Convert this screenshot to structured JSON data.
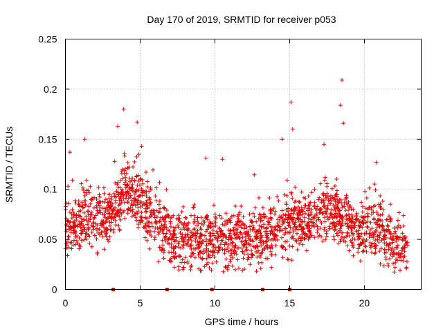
{
  "chart_data": {
    "type": "scatter",
    "title": "Day 170 of 2019, SRMTID for receiver p053",
    "xlabel": "GPS time / hours",
    "ylabel": "SRMTID / TECUs",
    "xlim": [
      0,
      23.8
    ],
    "ylim": [
      0,
      0.25
    ],
    "xticks": [
      0,
      5,
      10,
      15,
      20
    ],
    "xtick_labels": [
      "0",
      "5",
      "10",
      "15",
      "20"
    ],
    "yticks": [
      0,
      0.05,
      0.1,
      0.15,
      0.2,
      0.25
    ],
    "ytick_labels": [
      "0",
      "0.05",
      "0.1",
      "0.15",
      "0.2",
      "0.25"
    ],
    "grid": true,
    "marker": "+",
    "color": "#e00000",
    "x_range": [
      0.0,
      22.9
    ],
    "trend": [
      {
        "x": 0.0,
        "y": 0.062
      },
      {
        "x": 0.5,
        "y": 0.06
      },
      {
        "x": 1.0,
        "y": 0.066
      },
      {
        "x": 1.5,
        "y": 0.072
      },
      {
        "x": 2.0,
        "y": 0.068
      },
      {
        "x": 2.5,
        "y": 0.07
      },
      {
        "x": 3.0,
        "y": 0.073
      },
      {
        "x": 3.5,
        "y": 0.09
      },
      {
        "x": 4.0,
        "y": 0.1
      },
      {
        "x": 4.5,
        "y": 0.098
      },
      {
        "x": 5.0,
        "y": 0.088
      },
      {
        "x": 5.5,
        "y": 0.075
      },
      {
        "x": 6.0,
        "y": 0.068
      },
      {
        "x": 6.5,
        "y": 0.06
      },
      {
        "x": 7.0,
        "y": 0.052
      },
      {
        "x": 7.5,
        "y": 0.05
      },
      {
        "x": 8.0,
        "y": 0.05
      },
      {
        "x": 8.5,
        "y": 0.052
      },
      {
        "x": 9.0,
        "y": 0.049
      },
      {
        "x": 9.5,
        "y": 0.05
      },
      {
        "x": 10.0,
        "y": 0.052
      },
      {
        "x": 10.5,
        "y": 0.05
      },
      {
        "x": 11.0,
        "y": 0.046
      },
      {
        "x": 11.5,
        "y": 0.052
      },
      {
        "x": 12.0,
        "y": 0.05
      },
      {
        "x": 12.5,
        "y": 0.05
      },
      {
        "x": 13.0,
        "y": 0.052
      },
      {
        "x": 13.5,
        "y": 0.055
      },
      {
        "x": 14.0,
        "y": 0.058
      },
      {
        "x": 14.5,
        "y": 0.06
      },
      {
        "x": 15.0,
        "y": 0.064
      },
      {
        "x": 15.5,
        "y": 0.072
      },
      {
        "x": 16.0,
        "y": 0.068
      },
      {
        "x": 16.5,
        "y": 0.07
      },
      {
        "x": 17.0,
        "y": 0.074
      },
      {
        "x": 17.5,
        "y": 0.08
      },
      {
        "x": 18.0,
        "y": 0.076
      },
      {
        "x": 18.5,
        "y": 0.07
      },
      {
        "x": 19.0,
        "y": 0.064
      },
      {
        "x": 19.5,
        "y": 0.06
      },
      {
        "x": 20.0,
        "y": 0.056
      },
      {
        "x": 20.5,
        "y": 0.062
      },
      {
        "x": 21.0,
        "y": 0.064
      },
      {
        "x": 21.5,
        "y": 0.05
      },
      {
        "x": 22.0,
        "y": 0.044
      },
      {
        "x": 22.5,
        "y": 0.04
      },
      {
        "x": 22.9,
        "y": 0.036
      }
    ],
    "spread": 0.018,
    "approx_point_count": 2000,
    "notable_peaks": [
      {
        "x": 0.3,
        "y": 0.137
      },
      {
        "x": 1.3,
        "y": 0.15
      },
      {
        "x": 3.9,
        "y": 0.18
      },
      {
        "x": 3.5,
        "y": 0.163
      },
      {
        "x": 4.8,
        "y": 0.167
      },
      {
        "x": 5.1,
        "y": 0.143
      },
      {
        "x": 9.4,
        "y": 0.131
      },
      {
        "x": 10.5,
        "y": 0.13
      },
      {
        "x": 14.5,
        "y": 0.15
      },
      {
        "x": 15.1,
        "y": 0.187
      },
      {
        "x": 15.2,
        "y": 0.16
      },
      {
        "x": 17.3,
        "y": 0.145
      },
      {
        "x": 18.4,
        "y": 0.184
      },
      {
        "x": 18.5,
        "y": 0.209
      },
      {
        "x": 18.6,
        "y": 0.166
      },
      {
        "x": 20.8,
        "y": 0.127
      }
    ],
    "data_gaps_x": [
      3.2,
      6.8,
      9.8,
      13.2,
      15.0
    ]
  }
}
